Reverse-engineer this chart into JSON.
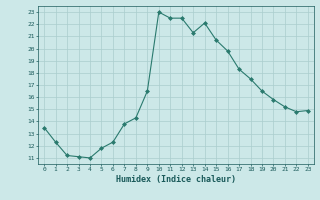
{
  "x": [
    0,
    1,
    2,
    3,
    4,
    5,
    6,
    7,
    8,
    9,
    10,
    11,
    12,
    13,
    14,
    15,
    16,
    17,
    18,
    19,
    20,
    21,
    22,
    23
  ],
  "y": [
    13.5,
    12.3,
    11.2,
    11.1,
    11.0,
    11.8,
    12.3,
    13.8,
    14.3,
    16.5,
    23.0,
    22.5,
    22.5,
    21.3,
    22.1,
    20.7,
    19.8,
    18.3,
    17.5,
    16.5,
    15.8,
    15.2,
    14.8,
    14.9
  ],
  "line_color": "#2a7a6e",
  "marker": "D",
  "marker_size": 2.0,
  "bg_color": "#cce8e8",
  "grid_color": "#aacece",
  "xlabel": "Humidex (Indice chaleur)",
  "xlim": [
    -0.5,
    23.5
  ],
  "ylim": [
    10.5,
    23.5
  ],
  "yticks": [
    11,
    12,
    13,
    14,
    15,
    16,
    17,
    18,
    19,
    20,
    21,
    22,
    23
  ],
  "xticks": [
    0,
    1,
    2,
    3,
    4,
    5,
    6,
    7,
    8,
    9,
    10,
    11,
    12,
    13,
    14,
    15,
    16,
    17,
    18,
    19,
    20,
    21,
    22,
    23
  ],
  "label_color": "#1a5a5a",
  "tick_color": "#1a5a5a"
}
